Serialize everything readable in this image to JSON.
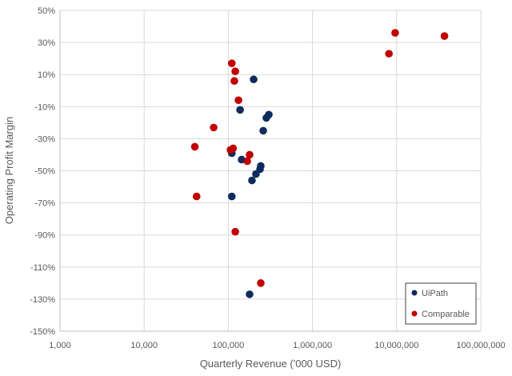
{
  "chart_data": {
    "type": "scatter",
    "title": "",
    "xlabel": "Quarterly Revenue ('000 USD)",
    "ylabel": "Operating Profit Margin",
    "x_scale": "log",
    "xlim": [
      1000,
      100000000
    ],
    "ylim": [
      -150,
      50
    ],
    "x_ticks": [
      1000,
      10000,
      100000,
      1000000,
      10000000,
      100000000
    ],
    "x_tick_labels": [
      "1,000",
      "10,000",
      "100,000",
      "1,000,000",
      "10,000,000",
      "100,000,000"
    ],
    "y_ticks": [
      50,
      30,
      10,
      -10,
      -30,
      -50,
      -70,
      -90,
      -110,
      -130,
      -150
    ],
    "y_tick_labels": [
      "50%",
      "30%",
      "10%",
      "-10%",
      "-30%",
      "-50%",
      "-70%",
      "-90%",
      "-110%",
      "-130%",
      "-150%"
    ],
    "grid": true,
    "legend_position": "bottom-right",
    "series": [
      {
        "name": "UiPath",
        "color": "#0d2b5e",
        "points": [
          [
            200000,
            7
          ],
          [
            138000,
            -12
          ],
          [
            303000,
            -15
          ],
          [
            283000,
            -17
          ],
          [
            260000,
            -25
          ],
          [
            110000,
            -39
          ],
          [
            144000,
            -43
          ],
          [
            243000,
            -47
          ],
          [
            238000,
            -49
          ],
          [
            213000,
            -52
          ],
          [
            191000,
            -56
          ],
          [
            110000,
            -66
          ],
          [
            179000,
            -127
          ]
        ]
      },
      {
        "name": "Comparable",
        "color": "#c00000",
        "points": [
          [
            110000,
            17
          ],
          [
            121000,
            12
          ],
          [
            118000,
            6
          ],
          [
            132000,
            -6
          ],
          [
            67000,
            -23
          ],
          [
            40000,
            -35
          ],
          [
            106000,
            -37
          ],
          [
            114000,
            -36
          ],
          [
            179000,
            -40
          ],
          [
            168000,
            -44
          ],
          [
            42000,
            -66
          ],
          [
            121000,
            -88
          ],
          [
            243000,
            -120
          ],
          [
            9600000,
            36
          ],
          [
            8100000,
            23
          ],
          [
            37000000,
            34
          ]
        ]
      }
    ]
  }
}
